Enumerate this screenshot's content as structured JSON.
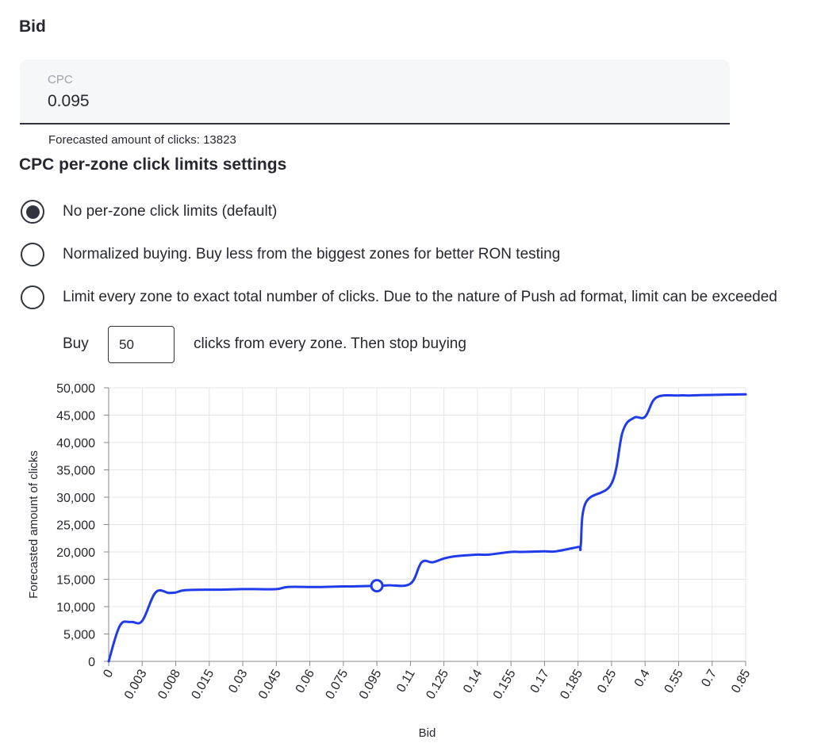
{
  "bid_section": {
    "title": "Bid",
    "cpc_label": "CPC",
    "cpc_value": "0.095",
    "forecast_text": "Forecasted amount of clicks: 13823"
  },
  "limits_section": {
    "title": "CPC per-zone click limits settings",
    "options": [
      {
        "label": "No per-zone click limits (default)",
        "selected": true
      },
      {
        "label": "Normalized buying. Buy less from the biggest zones for better RON testing",
        "selected": false
      },
      {
        "label": "Limit every zone to exact total number of clicks. Due to the nature of Push ad format, limit can be exceeded",
        "selected": false
      }
    ],
    "buy_label": "Buy",
    "buy_value": "50",
    "buy_suffix": "clicks from every zone. Then stop buying"
  },
  "colors": {
    "line": "#1f3bea",
    "radio": "#31333f"
  },
  "chart_data": {
    "type": "line",
    "xlabel": "Bid",
    "ylabel": "Forecasted amount of clicks",
    "ylim": [
      0,
      50000
    ],
    "y_ticks": [
      "0",
      "5,000",
      "10,000",
      "15,000",
      "20,000",
      "25,000",
      "30,000",
      "35,000",
      "40,000",
      "45,000",
      "50,000"
    ],
    "x_ticks": [
      "0",
      "0.003",
      "0.008",
      "0.015",
      "0.03",
      "0.045",
      "0.06",
      "0.075",
      "0.095",
      "0.11",
      "0.125",
      "0.14",
      "0.155",
      "0.17",
      "0.185",
      "0.25",
      "0.4",
      "0.55",
      "0.7",
      "0.85"
    ],
    "grid": true,
    "series": [
      {
        "x": [
          "0",
          "0.001",
          "0.002",
          "0.003",
          "0.005",
          "0.007",
          "0.008",
          "0.01",
          "0.015",
          "0.02",
          "0.03",
          "0.035",
          "0.045",
          "0.05",
          "0.06",
          "0.065",
          "0.075",
          "0.08",
          "0.095",
          "0.1",
          "0.11",
          "0.115",
          "0.12",
          "0.125",
          "0.13",
          "0.14",
          "0.145",
          "0.155",
          "0.16",
          "0.17",
          "0.175",
          "0.185",
          "0.19",
          "0.2",
          "0.25",
          "0.3",
          "0.35",
          "0.4",
          "0.45",
          "0.55",
          "0.6",
          "0.7",
          "0.85"
        ],
        "values": [
          0,
          6500,
          7200,
          7400,
          12600,
          12500,
          12600,
          13000,
          13100,
          13100,
          13200,
          13200,
          13200,
          13600,
          13600,
          13600,
          13700,
          13700,
          13823,
          13900,
          14200,
          18100,
          18100,
          18800,
          19200,
          19500,
          19500,
          20000,
          20000,
          20100,
          20100,
          20900,
          21000,
          29000,
          32500,
          42000,
          44500,
          44700,
          48200,
          48600,
          48600,
          48700,
          48800
        ]
      }
    ],
    "highlight": {
      "x": "0.095",
      "y": 13823
    }
  }
}
